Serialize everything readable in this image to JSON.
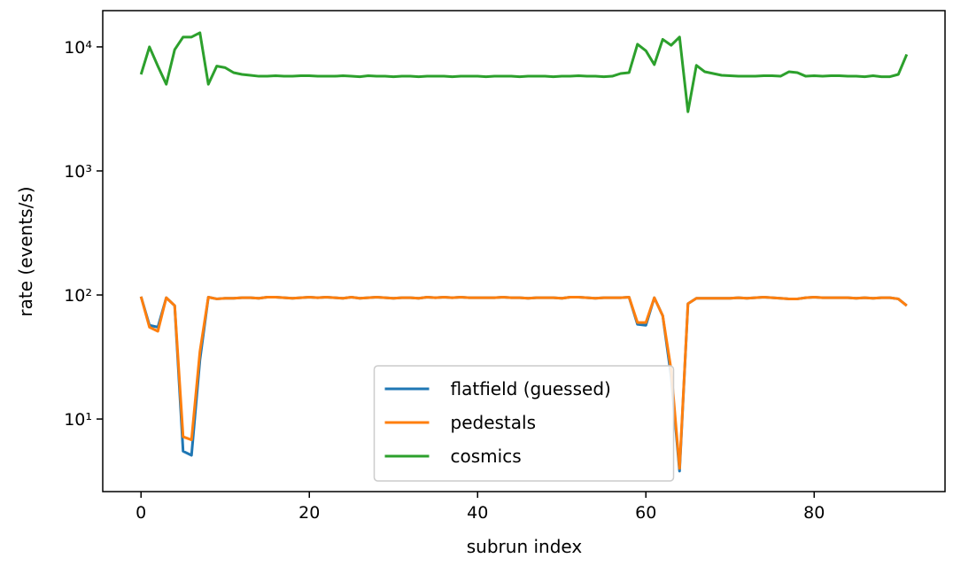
{
  "chart_data": {
    "type": "line",
    "xlabel": "subrun index",
    "ylabel": "rate (events/s)",
    "log_y": true,
    "legend": "lower center",
    "xlim": [
      -4.55,
      95.55
    ],
    "ylim": [
      2.6,
      19600
    ],
    "xticks": [
      0,
      20,
      40,
      60,
      80
    ],
    "yticks": [
      {
        "value": 10,
        "label": "10¹"
      },
      {
        "value": 100,
        "label": "10²"
      },
      {
        "value": 1000,
        "label": "10³"
      },
      {
        "value": 10000,
        "label": "10⁴"
      }
    ],
    "x": [
      0,
      1,
      2,
      3,
      4,
      5,
      6,
      7,
      8,
      9,
      10,
      11,
      12,
      13,
      14,
      15,
      16,
      17,
      18,
      19,
      20,
      21,
      22,
      23,
      24,
      25,
      26,
      27,
      28,
      29,
      30,
      31,
      32,
      33,
      34,
      35,
      36,
      37,
      38,
      39,
      40,
      41,
      42,
      43,
      44,
      45,
      46,
      47,
      48,
      49,
      50,
      51,
      52,
      53,
      54,
      55,
      56,
      57,
      58,
      59,
      60,
      61,
      62,
      63,
      64,
      65,
      66,
      67,
      68,
      69,
      70,
      71,
      72,
      73,
      74,
      75,
      76,
      77,
      78,
      79,
      80,
      81,
      82,
      83,
      84,
      85,
      86,
      87,
      88,
      89,
      90,
      91
    ],
    "series": [
      {
        "name": "flatfield (guessed)",
        "color": "#1f77b4",
        "values": [
          97,
          57,
          55,
          95,
          82,
          5.5,
          5.1,
          30,
          96,
          93,
          94,
          94,
          95,
          95,
          94,
          96,
          96,
          95,
          94,
          95,
          96,
          95,
          96,
          95,
          94,
          96,
          94,
          95,
          96,
          95,
          94,
          95,
          95,
          94,
          96,
          95,
          96,
          95,
          96,
          95,
          95,
          95,
          95,
          96,
          95,
          95,
          94,
          95,
          95,
          95,
          94,
          96,
          96,
          95,
          94,
          95,
          95,
          95,
          96,
          58,
          57,
          95,
          68,
          22,
          3.8,
          85,
          94,
          94,
          94,
          94,
          94,
          95,
          94,
          95,
          96,
          95,
          94,
          93,
          93,
          95,
          96,
          95,
          95,
          95,
          95,
          94,
          95,
          94,
          95,
          95,
          93,
          82
        ]
      },
      {
        "name": "pedestals",
        "color": "#ff7f0e",
        "values": [
          97,
          55,
          51,
          95,
          82,
          7.2,
          6.8,
          35,
          96,
          93,
          94,
          94,
          95,
          95,
          94,
          96,
          96,
          95,
          94,
          95,
          96,
          95,
          96,
          95,
          94,
          96,
          94,
          95,
          96,
          95,
          94,
          95,
          95,
          94,
          96,
          95,
          96,
          95,
          96,
          95,
          95,
          95,
          95,
          96,
          95,
          95,
          94,
          95,
          95,
          95,
          94,
          96,
          96,
          95,
          94,
          95,
          95,
          95,
          96,
          60,
          60,
          95,
          68,
          25,
          4.0,
          85,
          94,
          94,
          94,
          94,
          94,
          95,
          94,
          95,
          96,
          95,
          94,
          93,
          93,
          95,
          96,
          95,
          95,
          95,
          95,
          94,
          95,
          94,
          95,
          95,
          93,
          82
        ]
      },
      {
        "name": "cosmics",
        "color": "#2ca02c",
        "values": [
          6000,
          10000,
          7000,
          5000,
          9500,
          12000,
          12000,
          13000,
          5000,
          7000,
          6800,
          6200,
          6000,
          5900,
          5800,
          5800,
          5850,
          5800,
          5800,
          5850,
          5850,
          5800,
          5800,
          5800,
          5850,
          5800,
          5750,
          5850,
          5800,
          5800,
          5750,
          5800,
          5800,
          5750,
          5800,
          5800,
          5800,
          5750,
          5800,
          5800,
          5800,
          5750,
          5800,
          5800,
          5800,
          5750,
          5800,
          5800,
          5800,
          5750,
          5800,
          5800,
          5850,
          5800,
          5800,
          5750,
          5800,
          6100,
          6200,
          10500,
          9300,
          7200,
          11500,
          10300,
          12000,
          3000,
          7100,
          6300,
          6100,
          5900,
          5850,
          5800,
          5800,
          5800,
          5850,
          5850,
          5800,
          6300,
          6200,
          5800,
          5850,
          5800,
          5850,
          5850,
          5800,
          5800,
          5750,
          5850,
          5750,
          5750,
          6000,
          8700
        ]
      }
    ]
  }
}
